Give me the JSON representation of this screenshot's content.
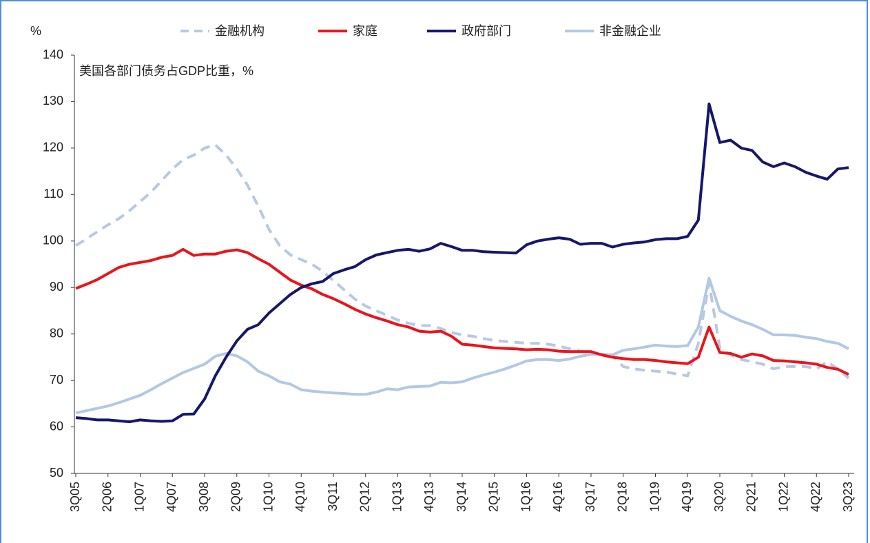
{
  "chart_data": {
    "type": "line",
    "annotation": "美国各部门债务占GDP比重，%",
    "y_unit": "%",
    "categories": [
      "3Q05",
      null,
      null,
      "2Q06",
      null,
      null,
      "1Q07",
      null,
      null,
      "4Q07",
      null,
      null,
      "3Q08",
      null,
      null,
      "2Q09",
      null,
      null,
      "1Q10",
      null,
      null,
      "4Q10",
      null,
      null,
      "3Q11",
      null,
      null,
      "2Q12",
      null,
      null,
      "1Q13",
      null,
      null,
      "4Q13",
      null,
      null,
      "3Q14",
      null,
      null,
      "2Q15",
      null,
      null,
      "1Q16",
      null,
      null,
      "4Q16",
      null,
      null,
      "3Q17",
      null,
      null,
      "2Q18",
      null,
      null,
      "1Q19",
      null,
      null,
      "4Q19",
      null,
      null,
      "3Q20",
      null,
      null,
      "2Q21",
      null,
      null,
      "1Q22",
      null,
      null,
      "4Q22",
      null,
      null,
      "3Q23"
    ],
    "series": [
      {
        "name": "金融机构",
        "color": "#b7c9e3",
        "dashed": true,
        "values": [
          99,
          100.5,
          102,
          103.5,
          104.8,
          106.5,
          108.5,
          110.5,
          113,
          115.5,
          117.5,
          118.5,
          120,
          120.7,
          118.5,
          115.5,
          112,
          107.5,
          102.5,
          99,
          97,
          96,
          95,
          93.5,
          91.5,
          89.5,
          87.5,
          86,
          85,
          84,
          83,
          82.3,
          81.8,
          81.8,
          81.2,
          80.3,
          79.8,
          79.5,
          79,
          78.6,
          78.4,
          78.2,
          78,
          78,
          77.8,
          77.4,
          76.8,
          76.3,
          75.9,
          75.6,
          75.3,
          73,
          72.5,
          72.2,
          72,
          71.8,
          71.4,
          71,
          78,
          91,
          77,
          75.5,
          74.5,
          74,
          73.5,
          72.5,
          73,
          73,
          73,
          72.5,
          74,
          72.5,
          70.5
        ]
      },
      {
        "name": "家庭",
        "color": "#e8151b",
        "dashed": false,
        "values": [
          89.8,
          90.7,
          91.7,
          93,
          94.3,
          95,
          95.4,
          95.8,
          96.5,
          96.9,
          98.2,
          96.9,
          97.2,
          97.2,
          97.8,
          98.1,
          97.5,
          96.2,
          95,
          93.3,
          91.6,
          90.5,
          89.7,
          88.5,
          87.6,
          86.5,
          85.3,
          84.3,
          83.5,
          82.8,
          82,
          81.5,
          80.6,
          80.4,
          80.6,
          79.5,
          77.8,
          77.6,
          77.3,
          77,
          76.9,
          76.8,
          76.6,
          76.7,
          76.6,
          76.3,
          76.2,
          76.2,
          76.2,
          75.5,
          75,
          74.7,
          74.5,
          74.5,
          74.3,
          74,
          73.8,
          73.6,
          75,
          81.5,
          76,
          75.8,
          75,
          75.7,
          75.3,
          74.3,
          74.2,
          74,
          73.8,
          73.5,
          72.8,
          72.4,
          71.3
        ]
      },
      {
        "name": "政府部门",
        "color": "#16176b",
        "dashed": false,
        "values": [
          62,
          61.8,
          61.5,
          61.5,
          61.3,
          61.1,
          61.5,
          61.3,
          61.2,
          61.3,
          62.7,
          62.8,
          66,
          71,
          75,
          78.5,
          81,
          82,
          84.5,
          86.5,
          88.5,
          90,
          90.8,
          91.3,
          93,
          93.8,
          94.5,
          96,
          97,
          97.5,
          98,
          98.2,
          97.8,
          98.3,
          99.5,
          98.8,
          98,
          98,
          97.7,
          97.6,
          97.5,
          97.4,
          99.2,
          100,
          100.4,
          100.7,
          100.4,
          99.3,
          99.5,
          99.5,
          98.7,
          99.3,
          99.6,
          99.8,
          100.3,
          100.5,
          100.5,
          101,
          104.5,
          129.5,
          121.2,
          121.7,
          120,
          119.5,
          117,
          116,
          116.8,
          116,
          114.8,
          114,
          113.3,
          115.5,
          115.8
        ]
      },
      {
        "name": "非金融企业",
        "color": "#b3c8e4",
        "dashed": false,
        "values": [
          63,
          63.5,
          64,
          64.5,
          65.2,
          66,
          66.8,
          68,
          69.3,
          70.5,
          71.7,
          72.6,
          73.5,
          75.2,
          75.8,
          75.3,
          74,
          72,
          71,
          69.7,
          69.2,
          68,
          67.7,
          67.5,
          67.3,
          67.2,
          67,
          67,
          67.5,
          68.2,
          68,
          68.6,
          68.7,
          68.8,
          69.6,
          69.5,
          69.7,
          70.5,
          71.2,
          71.8,
          72.5,
          73.3,
          74.2,
          74.5,
          74.5,
          74.3,
          74.6,
          75.2,
          75.6,
          75.6,
          75.5,
          76.5,
          76.8,
          77.2,
          77.6,
          77.4,
          77.3,
          77.5,
          81.5,
          92,
          85,
          83.8,
          82.8,
          82,
          81,
          79.8,
          79.8,
          79.7,
          79.3,
          79,
          78.4,
          78,
          76.8
        ]
      }
    ],
    "ylim": [
      50,
      140
    ],
    "yticks": [
      50,
      60,
      70,
      80,
      90,
      100,
      110,
      120,
      130,
      140
    ]
  }
}
